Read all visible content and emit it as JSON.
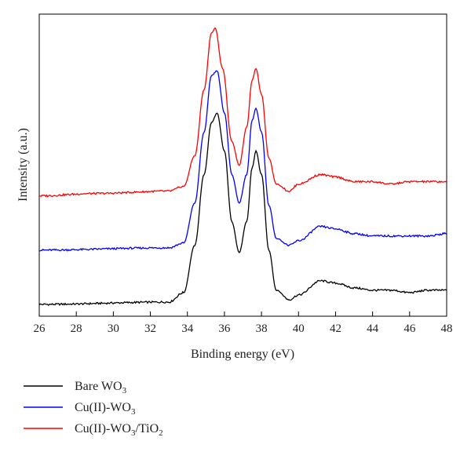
{
  "chart_data": {
    "type": "line",
    "xlabel": "Binding energy (eV)",
    "ylabel": "Intensity (a.u.)",
    "xlim": [
      26,
      48
    ],
    "x_ticks": [
      "26",
      "28",
      "30",
      "32",
      "34",
      "36",
      "38",
      "40",
      "42",
      "44",
      "46",
      "48"
    ],
    "y_ticks_shown": false,
    "legend_position": "below-left",
    "series": [
      {
        "name": "Bare WO3",
        "label_main": "Bare WO",
        "label_sub": "3",
        "label_tail": "",
        "label_sub2": "",
        "color": "#000000",
        "baseline": 0.05,
        "points": [
          [
            26,
            0.05
          ],
          [
            33,
            0.06
          ],
          [
            33.8,
            0.1
          ],
          [
            34.4,
            0.3
          ],
          [
            34.9,
            0.6
          ],
          [
            35.3,
            0.82
          ],
          [
            35.6,
            0.86
          ],
          [
            36.0,
            0.7
          ],
          [
            36.4,
            0.4
          ],
          [
            36.8,
            0.27
          ],
          [
            37.2,
            0.4
          ],
          [
            37.5,
            0.63
          ],
          [
            37.7,
            0.7
          ],
          [
            38.0,
            0.6
          ],
          [
            38.4,
            0.28
          ],
          [
            38.8,
            0.11
          ],
          [
            39.5,
            0.07
          ],
          [
            40.0,
            0.09
          ],
          [
            41.2,
            0.15
          ],
          [
            42.0,
            0.14
          ],
          [
            43.0,
            0.12
          ],
          [
            44.0,
            0.11
          ],
          [
            45.0,
            0.11
          ],
          [
            46.0,
            0.1
          ],
          [
            47.0,
            0.11
          ],
          [
            48,
            0.11
          ]
        ]
      },
      {
        "name": "Cu(II)-WO3",
        "label_main": "Cu(II)-WO",
        "label_sub": "3",
        "label_tail": "",
        "label_sub2": "",
        "color": "#0000ff",
        "baseline": 0.28,
        "points": [
          [
            26,
            0.28
          ],
          [
            33,
            0.29
          ],
          [
            33.8,
            0.31
          ],
          [
            34.4,
            0.48
          ],
          [
            34.9,
            0.78
          ],
          [
            35.3,
            1.02
          ],
          [
            35.6,
            1.04
          ],
          [
            36.0,
            0.86
          ],
          [
            36.4,
            0.6
          ],
          [
            36.8,
            0.48
          ],
          [
            37.2,
            0.6
          ],
          [
            37.5,
            0.83
          ],
          [
            37.7,
            0.88
          ],
          [
            38.0,
            0.78
          ],
          [
            38.4,
            0.47
          ],
          [
            38.8,
            0.33
          ],
          [
            39.5,
            0.3
          ],
          [
            40.0,
            0.32
          ],
          [
            41.2,
            0.38
          ],
          [
            42.0,
            0.37
          ],
          [
            43.0,
            0.35
          ],
          [
            44.0,
            0.34
          ],
          [
            45.0,
            0.34
          ],
          [
            46.0,
            0.34
          ],
          [
            47.0,
            0.34
          ],
          [
            48,
            0.35
          ]
        ]
      },
      {
        "name": "Cu(II)-WO3/TiO2",
        "label_main": "Cu(II)-WO",
        "label_sub": "3",
        "label_tail": "/TiO",
        "label_sub2": "2",
        "color": "#ff0000",
        "baseline": 0.51,
        "points": [
          [
            26,
            0.51
          ],
          [
            29,
            0.52
          ],
          [
            33,
            0.53
          ],
          [
            33.8,
            0.55
          ],
          [
            34.4,
            0.68
          ],
          [
            34.9,
            0.96
          ],
          [
            35.3,
            1.2
          ],
          [
            35.5,
            1.22
          ],
          [
            35.9,
            1.05
          ],
          [
            36.4,
            0.74
          ],
          [
            36.8,
            0.64
          ],
          [
            37.2,
            0.8
          ],
          [
            37.5,
            1.0
          ],
          [
            37.7,
            1.05
          ],
          [
            38.0,
            0.94
          ],
          [
            38.4,
            0.67
          ],
          [
            38.8,
            0.56
          ],
          [
            39.5,
            0.53
          ],
          [
            40.0,
            0.56
          ],
          [
            41.2,
            0.6
          ],
          [
            42.0,
            0.59
          ],
          [
            43.0,
            0.57
          ],
          [
            44.0,
            0.57
          ],
          [
            45.0,
            0.56
          ],
          [
            46.0,
            0.57
          ],
          [
            47.0,
            0.57
          ],
          [
            48,
            0.57
          ]
        ]
      }
    ]
  }
}
